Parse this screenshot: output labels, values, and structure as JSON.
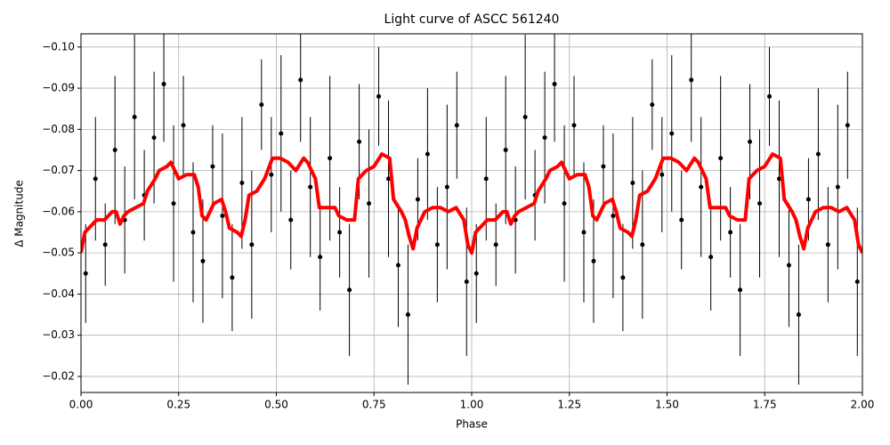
{
  "chart_data": {
    "type": "line",
    "title": "Light curve of ASCC 561240",
    "x_label": "Phase",
    "y_label": "Δ Magnitude",
    "xlim": [
      0,
      2
    ],
    "ylim": [
      -0.1032,
      -0.0161
    ],
    "y_inverted": true,
    "grid": true,
    "xticks": [
      {
        "value": 0,
        "label": "0.00"
      },
      {
        "value": 0.25,
        "label": "0.25"
      },
      {
        "value": 0.5,
        "label": "0.50"
      },
      {
        "value": 0.75,
        "label": "0.75"
      },
      {
        "value": 1,
        "label": "1.00"
      },
      {
        "value": 1.25,
        "label": "1.25"
      },
      {
        "value": 1.5,
        "label": "1.50"
      },
      {
        "value": 1.75,
        "label": "1.75"
      },
      {
        "value": 2,
        "label": "2.00"
      }
    ],
    "yticks": [
      {
        "value": -0.1,
        "label": "−0.10"
      },
      {
        "value": -0.09,
        "label": "−0.09"
      },
      {
        "value": -0.08,
        "label": "−0.08"
      },
      {
        "value": -0.07,
        "label": "−0.07"
      },
      {
        "value": -0.06,
        "label": "−0.06"
      },
      {
        "value": -0.05,
        "label": "−0.05"
      },
      {
        "value": -0.04,
        "label": "−0.04"
      },
      {
        "value": -0.03,
        "label": "−0.03"
      },
      {
        "value": -0.02,
        "label": "−0.02"
      }
    ],
    "series": [
      {
        "type": "errorbar",
        "color": "#000000",
        "x": [
          0.012,
          0.037,
          0.062,
          0.087,
          0.112,
          0.137,
          0.162,
          0.187,
          0.212,
          0.237,
          0.262,
          0.287,
          0.312,
          0.337,
          0.362,
          0.387,
          0.412,
          0.437,
          0.462,
          0.487,
          0.512,
          0.537,
          0.562,
          0.587,
          0.612,
          0.637,
          0.662,
          0.687,
          0.712,
          0.737,
          0.762,
          0.787,
          0.812,
          0.837,
          0.862,
          0.887,
          0.912,
          0.937,
          0.962,
          0.987,
          1.012,
          1.037,
          1.062,
          1.087,
          1.112,
          1.137,
          1.162,
          1.187,
          1.212,
          1.237,
          1.262,
          1.287,
          1.312,
          1.337,
          1.362,
          1.387,
          1.412,
          1.437,
          1.462,
          1.487,
          1.512,
          1.537,
          1.562,
          1.587,
          1.612,
          1.637,
          1.662,
          1.687,
          1.712,
          1.737,
          1.762,
          1.787,
          1.812,
          1.837,
          1.862,
          1.887,
          1.912,
          1.937,
          1.962,
          1.987
        ],
        "values": [
          -0.045,
          -0.068,
          -0.052,
          -0.075,
          -0.058,
          -0.083,
          -0.064,
          -0.078,
          -0.091,
          -0.062,
          -0.081,
          -0.055,
          -0.048,
          -0.071,
          -0.059,
          -0.044,
          -0.067,
          -0.052,
          -0.086,
          -0.069,
          -0.079,
          -0.058,
          -0.092,
          -0.066,
          -0.049,
          -0.073,
          -0.055,
          -0.041,
          -0.077,
          -0.062,
          -0.088,
          -0.068,
          -0.047,
          -0.035,
          -0.063,
          -0.074,
          -0.052,
          -0.066,
          -0.081,
          -0.043,
          -0.045,
          -0.068,
          -0.052,
          -0.075,
          -0.058,
          -0.083,
          -0.064,
          -0.078,
          -0.091,
          -0.062,
          -0.081,
          -0.055,
          -0.048,
          -0.071,
          -0.059,
          -0.044,
          -0.067,
          -0.052,
          -0.086,
          -0.069,
          -0.079,
          -0.058,
          -0.092,
          -0.066,
          -0.049,
          -0.073,
          -0.055,
          -0.041,
          -0.077,
          -0.062,
          -0.088,
          -0.068,
          -0.047,
          -0.035,
          -0.063,
          -0.074,
          -0.052,
          -0.066,
          -0.081,
          -0.043
        ],
        "errors": [
          0.012,
          0.015,
          0.01,
          0.018,
          0.013,
          0.02,
          0.011,
          0.016,
          0.014,
          0.019,
          0.012,
          0.017,
          0.015,
          0.01,
          0.02,
          0.013,
          0.016,
          0.018,
          0.011,
          0.014,
          0.019,
          0.012,
          0.015,
          0.017,
          0.013,
          0.02,
          0.011,
          0.016,
          0.014,
          0.018,
          0.012,
          0.019,
          0.015,
          0.017,
          0.01,
          0.016,
          0.014,
          0.02,
          0.013,
          0.018,
          0.012,
          0.015,
          0.01,
          0.018,
          0.013,
          0.02,
          0.011,
          0.016,
          0.014,
          0.019,
          0.012,
          0.017,
          0.015,
          0.01,
          0.02,
          0.013,
          0.016,
          0.018,
          0.011,
          0.014,
          0.019,
          0.012,
          0.015,
          0.017,
          0.013,
          0.02,
          0.011,
          0.016,
          0.014,
          0.018,
          0.012,
          0.019,
          0.015,
          0.017,
          0.01,
          0.016,
          0.014,
          0.02,
          0.013,
          0.018
        ]
      },
      {
        "type": "line",
        "color": "#ff0000",
        "x": [
          0,
          0.01,
          0.02,
          0.04,
          0.06,
          0.07,
          0.08,
          0.09,
          0.1,
          0.11,
          0.12,
          0.14,
          0.16,
          0.17,
          0.19,
          0.2,
          0.22,
          0.23,
          0.25,
          0.27,
          0.29,
          0.3,
          0.31,
          0.32,
          0.34,
          0.36,
          0.37,
          0.38,
          0.4,
          0.41,
          0.42,
          0.43,
          0.45,
          0.47,
          0.49,
          0.51,
          0.53,
          0.55,
          0.57,
          0.58,
          0.6,
          0.61,
          0.63,
          0.65,
          0.66,
          0.68,
          0.7,
          0.71,
          0.73,
          0.75,
          0.77,
          0.79,
          0.8,
          0.82,
          0.83,
          0.84,
          0.85,
          0.86,
          0.88,
          0.9,
          0.92,
          0.94,
          0.96,
          0.98,
          0.99,
          1,
          1.01,
          1.02,
          1.04,
          1.06,
          1.07,
          1.08,
          1.09,
          1.1,
          1.11,
          1.12,
          1.14,
          1.16,
          1.17,
          1.19,
          1.2,
          1.22,
          1.23,
          1.25,
          1.27,
          1.29,
          1.3,
          1.31,
          1.32,
          1.34,
          1.36,
          1.37,
          1.38,
          1.4,
          1.41,
          1.42,
          1.43,
          1.45,
          1.47,
          1.49,
          1.51,
          1.53,
          1.55,
          1.57,
          1.58,
          1.6,
          1.61,
          1.63,
          1.65,
          1.66,
          1.68,
          1.7,
          1.71,
          1.73,
          1.75,
          1.77,
          1.79,
          1.8,
          1.82,
          1.83,
          1.84,
          1.85,
          1.86,
          1.88,
          1.9,
          1.92,
          1.94,
          1.96,
          1.98,
          1.99,
          2
        ],
        "values": [
          -0.05,
          -0.055,
          -0.056,
          -0.058,
          -0.058,
          -0.059,
          -0.06,
          -0.06,
          -0.057,
          -0.059,
          -0.06,
          -0.061,
          -0.062,
          -0.065,
          -0.068,
          -0.07,
          -0.071,
          -0.072,
          -0.068,
          -0.069,
          -0.069,
          -0.066,
          -0.059,
          -0.058,
          -0.062,
          -0.063,
          -0.06,
          -0.056,
          -0.055,
          -0.054,
          -0.058,
          -0.064,
          -0.065,
          -0.068,
          -0.073,
          -0.073,
          -0.072,
          -0.07,
          -0.073,
          -0.072,
          -0.068,
          -0.061,
          -0.061,
          -0.061,
          -0.059,
          -0.058,
          -0.058,
          -0.068,
          -0.07,
          -0.071,
          -0.074,
          -0.073,
          -0.063,
          -0.06,
          -0.058,
          -0.054,
          -0.051,
          -0.056,
          -0.06,
          -0.061,
          -0.061,
          -0.06,
          -0.061,
          -0.058,
          -0.052,
          -0.05,
          -0.055,
          -0.056,
          -0.058,
          -0.058,
          -0.059,
          -0.06,
          -0.06,
          -0.057,
          -0.059,
          -0.06,
          -0.061,
          -0.062,
          -0.065,
          -0.068,
          -0.07,
          -0.071,
          -0.072,
          -0.068,
          -0.069,
          -0.069,
          -0.066,
          -0.059,
          -0.058,
          -0.062,
          -0.063,
          -0.06,
          -0.056,
          -0.055,
          -0.054,
          -0.058,
          -0.064,
          -0.065,
          -0.068,
          -0.073,
          -0.073,
          -0.072,
          -0.07,
          -0.073,
          -0.072,
          -0.068,
          -0.061,
          -0.061,
          -0.061,
          -0.059,
          -0.058,
          -0.058,
          -0.068,
          -0.07,
          -0.071,
          -0.074,
          -0.073,
          -0.063,
          -0.06,
          -0.058,
          -0.054,
          -0.051,
          -0.056,
          -0.06,
          -0.061,
          -0.061,
          -0.06,
          -0.061,
          -0.058,
          -0.052,
          -0.05
        ]
      }
    ]
  }
}
